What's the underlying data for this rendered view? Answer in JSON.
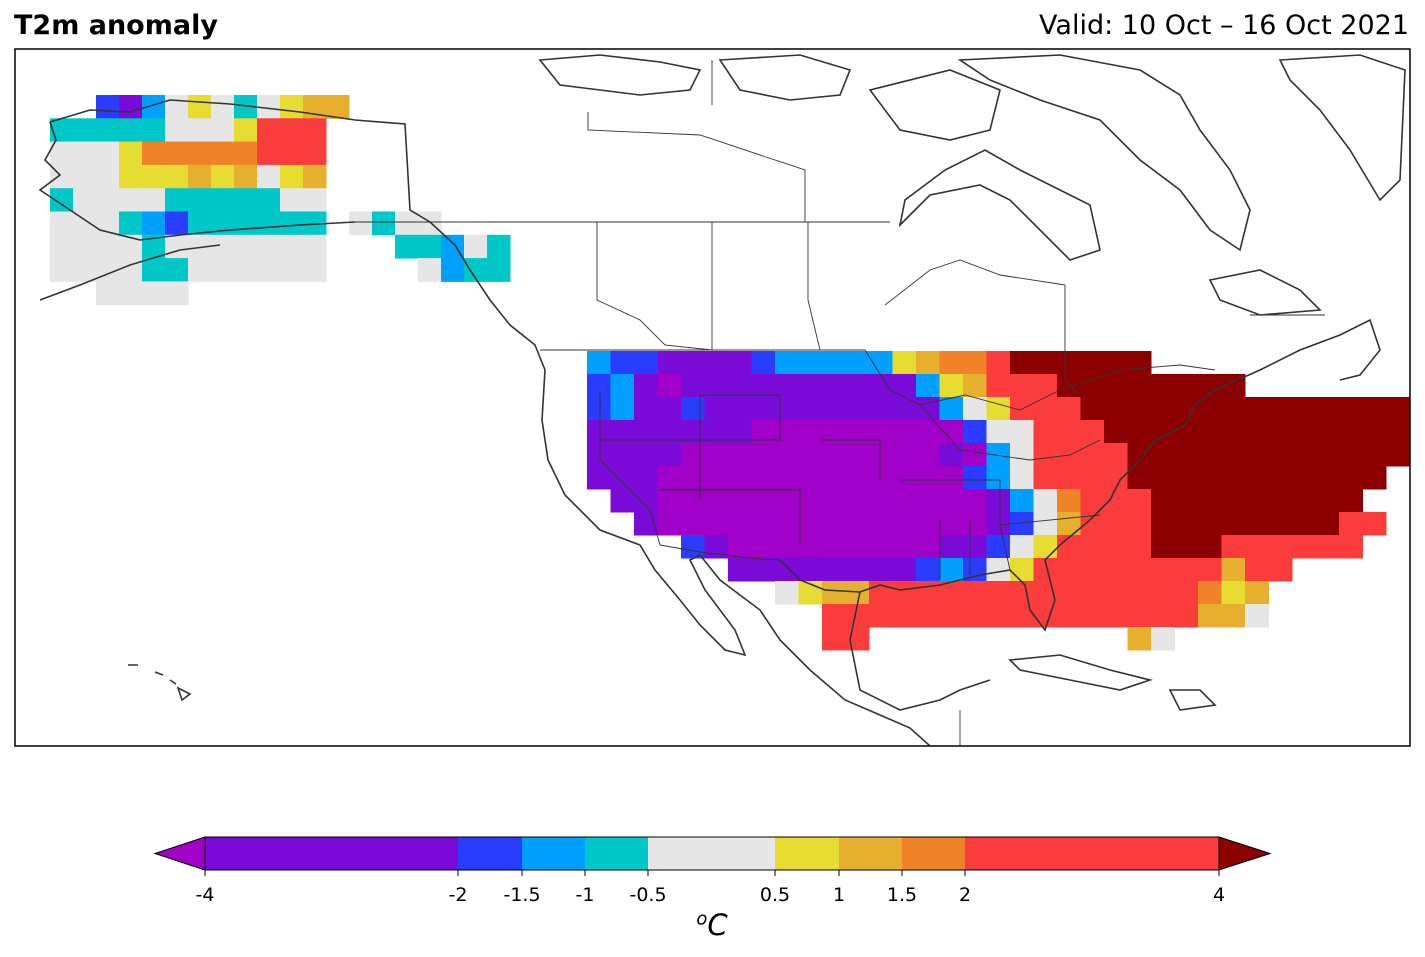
{
  "header": {
    "title": "T2m anomaly",
    "valid": "Valid: 10 Oct – 16 Oct 2021"
  },
  "colorbar": {
    "unit_base": "C",
    "unit_super": "o",
    "ticks": [
      "-4",
      "-2",
      "-1.5",
      "-1",
      "-0.5",
      "0.5",
      "1",
      "1.5",
      "2",
      "4"
    ],
    "bins": [
      {
        "min": -4,
        "max": -2,
        "color": "#7a0ad8"
      },
      {
        "min": -2,
        "max": -1.5,
        "color": "#2a3dff"
      },
      {
        "min": -1.5,
        "max": -1,
        "color": "#00a0ff"
      },
      {
        "min": -1,
        "max": -0.5,
        "color": "#00c8c8"
      },
      {
        "min": -0.5,
        "max": 0.5,
        "color": "#e6e6e6"
      },
      {
        "min": 0.5,
        "max": 1,
        "color": "#e6dc32"
      },
      {
        "min": 1,
        "max": 1.5,
        "color": "#e6af2d"
      },
      {
        "min": 1.5,
        "max": 2,
        "color": "#f08228"
      },
      {
        "min": 2,
        "max": 4,
        "color": "#fa3c3c"
      }
    ],
    "under_color": "#a000c8",
    "over_color": "#8b0000"
  },
  "legend_colors": {
    "K": "#8b0000",
    "R": "#fa3c3c",
    "O": "#f08228",
    "G": "#e6af2d",
    "Y": "#e6dc32",
    "W": "#e6e6e6",
    "C": "#00c8c8",
    "S": "#00a0ff",
    "B": "#2a3dff",
    "P": "#7a0ad8",
    "M": "#a000c8"
  },
  "anomaly_grid": {
    "alaska": [
      "..BPSWYWCWYGG.........",
      "CCCCCWWWYRRR..........",
      "WWWYOOOOORRR..........",
      "WWWYYYGYGWYG..........",
      "CWWWWCCCCCWW..........",
      "WWWCSBCCCCCC.WCWW.....",
      "WWWWCWWWWWWW...CCSWC..",
      "WWWWCCWWWWWW....WSCC..",
      "..WWWW.................."
    ],
    "conus": [
      "..SBBPPPPBSSSSSYGOORKKKKKK..........",
      "..BSPMPPPPPPPPPPSYGRRRKKKKKKKK......",
      "..BSPPBPPPPPPPPPPSWYRRRKKKKKKKKKKKKKK",
      "..PPPPPPPMMMMMMMMMBWWRRRKKKKKKKKKKKKK",
      "..PPPPMMMMMMMMMMMPMSWRRRRKKKKKKKKKKKK",
      "..PPPMMMMMMMMMMMMMBSWRRRRKKKKKKKKKKK.",
      "...PPMMMMMMMMMMMMMMPSWORRRKKKKKKKKK..",
      "....PMMMMMMMMMMMMMMPBWGRRRKKKKKKKKRR.",
      "......BPMMMMMMMMMPPBWYRRRRKKKRRRRRR..",
      "........PPPPPPPPBSBWYRRRRRRRRGRR.....",
      "..........WYGGRRRRRRRRRRRRRROYG......",
      "............RRRRRRRRRRRRRRRRGGW......",
      "............RR...........GW.........."
    ]
  }
}
